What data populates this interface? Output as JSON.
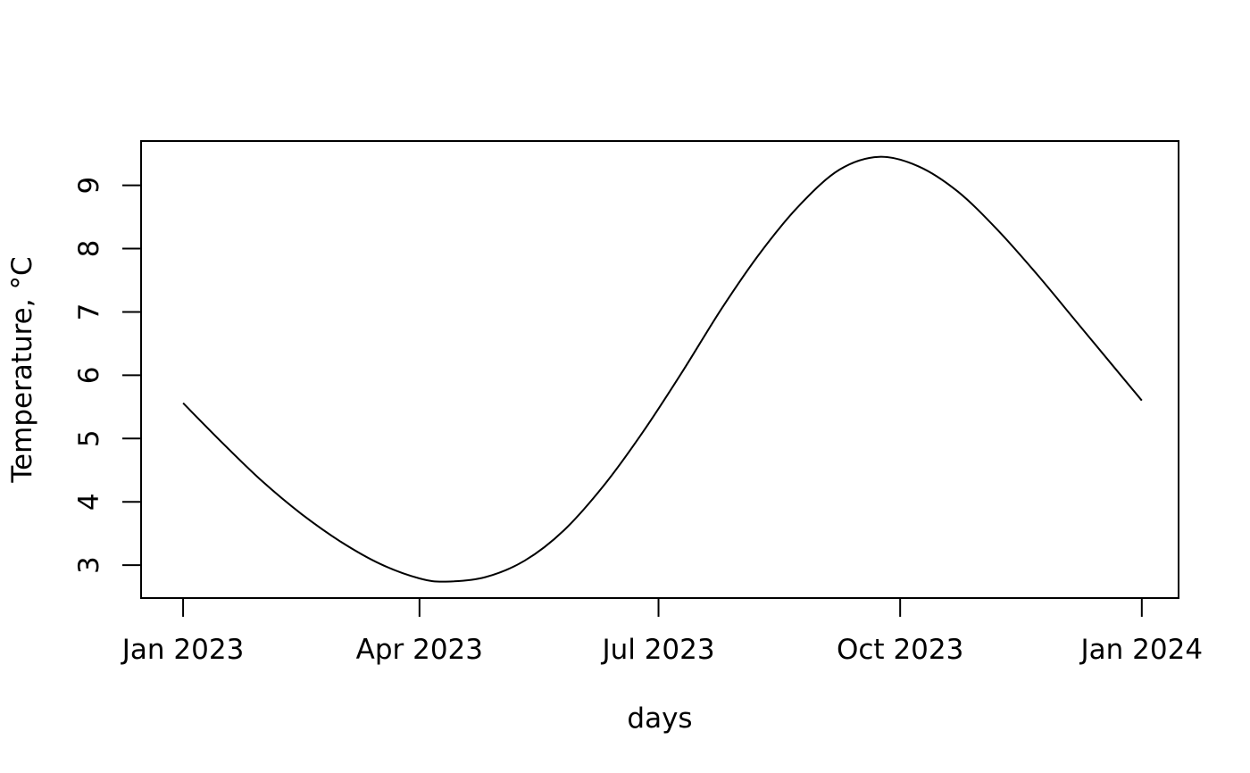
{
  "chart_data": {
    "type": "line",
    "title": "",
    "xlabel": "days",
    "ylabel": "Temperature, °C",
    "x_range": [
      "2022-12-16",
      "2024-01-15"
    ],
    "ylim": [
      2.48,
      9.7
    ],
    "x_ticks": [
      {
        "date": "2023-01-01",
        "label": "Jan 2023"
      },
      {
        "date": "2023-04-01",
        "label": "Apr 2023"
      },
      {
        "date": "2023-07-01",
        "label": "Jul 2023"
      },
      {
        "date": "2023-10-01",
        "label": "Oct 2023"
      },
      {
        "date": "2024-01-01",
        "label": "Jan 2024"
      }
    ],
    "y_ticks": [
      3,
      4,
      5,
      6,
      7,
      8,
      9
    ],
    "grid": false,
    "legend": "none",
    "series": [
      {
        "color": "#000000",
        "x": [
          "2023-01-01",
          "2023-01-16",
          "2023-01-31",
          "2023-02-15",
          "2023-03-02",
          "2023-03-17",
          "2023-04-01",
          "2023-04-11",
          "2023-04-26",
          "2023-05-11",
          "2023-05-26",
          "2023-06-10",
          "2023-06-25",
          "2023-07-10",
          "2023-07-25",
          "2023-08-09",
          "2023-08-24",
          "2023-09-08",
          "2023-09-23",
          "2023-10-08",
          "2023-10-23",
          "2023-11-07",
          "2023-11-22",
          "2023-12-07",
          "2023-12-22",
          "2024-01-01"
        ],
        "y": [
          5.56,
          4.93,
          4.33,
          3.81,
          3.37,
          3.02,
          2.79,
          2.74,
          2.81,
          3.07,
          3.55,
          4.25,
          5.1,
          6.05,
          7.05,
          7.95,
          8.7,
          9.25,
          9.45,
          9.3,
          8.9,
          8.3,
          7.6,
          6.85,
          6.1,
          5.6
        ]
      }
    ]
  }
}
